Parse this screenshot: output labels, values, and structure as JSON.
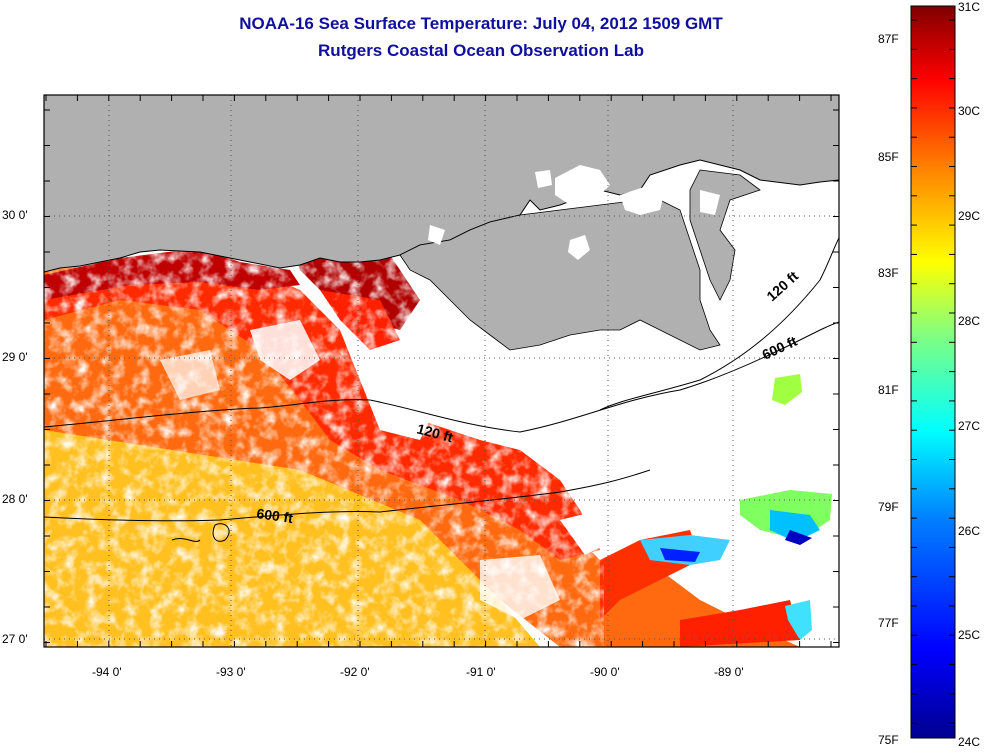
{
  "title_line1": "NOAA-16 Sea Surface Temperature:  July 04, 2012 1509 GMT",
  "title_line2": "Rutgers Coastal Ocean Observation Lab",
  "map": {
    "lon_ticks": [
      "-94 0'",
      "-93 0'",
      "-92 0'",
      "-91 0'",
      "-90 0'",
      "-89 0'"
    ],
    "lat_ticks": [
      "30 0'",
      "29 0'",
      "28 0'",
      "27 0'"
    ],
    "contour_labels": [
      "120 ft",
      "600 ft",
      "120 ft",
      "600 ft"
    ]
  },
  "colorbar": {
    "fahrenheit_labels": [
      "87F",
      "85F",
      "83F",
      "81F",
      "79F",
      "77F",
      "75F"
    ],
    "celsius_labels": [
      "31C",
      "30C",
      "29C",
      "28C",
      "27C",
      "26C",
      "25C",
      "24C"
    ]
  },
  "colors": {
    "land": "#b0b0b0",
    "title": "#1010a0",
    "colormap": [
      "#00008f",
      "#0000ff",
      "#0080ff",
      "#00ffff",
      "#80ff80",
      "#ffff00",
      "#ff8000",
      "#ff0000",
      "#800000"
    ]
  }
}
